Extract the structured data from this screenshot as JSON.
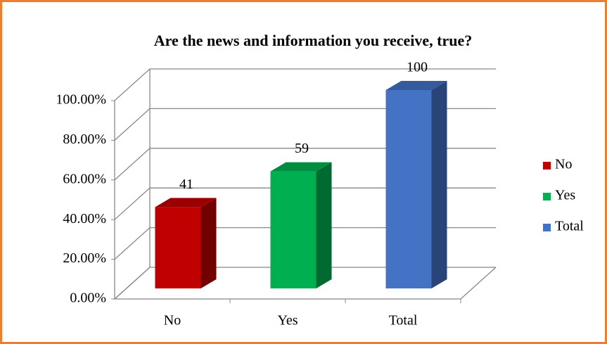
{
  "chart_data": {
    "type": "bar3d",
    "title": "Are the news and information you receive, true?",
    "categories": [
      "No",
      "Yes",
      "Total"
    ],
    "values": [
      41,
      59,
      100
    ],
    "colors": [
      "#c00000",
      "#00b050",
      "#4472c4"
    ],
    "ylim": [
      0,
      100
    ],
    "yticks": [
      {
        "value": 0,
        "label": "0.00%"
      },
      {
        "value": 20,
        "label": "20.00%"
      },
      {
        "value": 40,
        "label": "40.00%"
      },
      {
        "value": 60,
        "label": "60.00%"
      },
      {
        "value": 80,
        "label": "80.00%"
      },
      {
        "value": 100,
        "label": "100.00%"
      }
    ],
    "grid": true,
    "legend": "right"
  }
}
